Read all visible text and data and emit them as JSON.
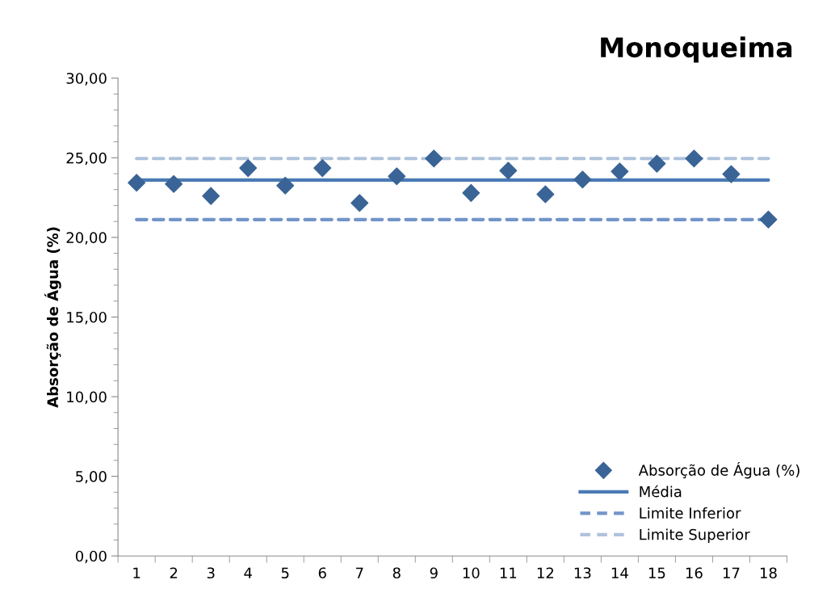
{
  "chart_data": {
    "type": "scatter",
    "title": "Monoqueima",
    "ylabel": "Absorção de Água (%)",
    "categories": [
      "1",
      "2",
      "3",
      "4",
      "5",
      "6",
      "7",
      "8",
      "9",
      "10",
      "11",
      "12",
      "13",
      "14",
      "15",
      "16",
      "17",
      "18"
    ],
    "series": [
      {
        "name": "Absorção de Água (%)",
        "color": "#3a6496",
        "values": [
          23.43,
          23.35,
          22.6,
          24.35,
          23.25,
          24.35,
          22.16,
          23.84,
          24.95,
          22.79,
          24.19,
          22.71,
          23.63,
          24.14,
          24.63,
          24.95,
          23.97,
          21.12
        ]
      }
    ],
    "ref_lines": [
      {
        "axis": "y",
        "value": 23.6,
        "label": "Média",
        "color": "#4a7ab4",
        "line_style": "solid"
      },
      {
        "axis": "y",
        "value": 21.12,
        "label": "Limite Inferior",
        "color": "#7294c8",
        "line_style": "dashed"
      },
      {
        "axis": "y",
        "value": 24.95,
        "label": "Limite Superior",
        "color": "#b0c2dc",
        "line_style": "dashed"
      }
    ],
    "ylim": [
      0,
      30
    ],
    "yticks": [
      {
        "value": 0,
        "label": "0,00"
      },
      {
        "value": 5,
        "label": "5,00"
      },
      {
        "value": 10,
        "label": "10,00"
      },
      {
        "value": 15,
        "label": "15,00"
      },
      {
        "value": 20,
        "label": "20,00"
      },
      {
        "value": 25,
        "label": "25,00"
      },
      {
        "value": 30,
        "label": "30,00"
      }
    ],
    "marker": "diamond",
    "grid": false,
    "legend": "bottom right"
  }
}
